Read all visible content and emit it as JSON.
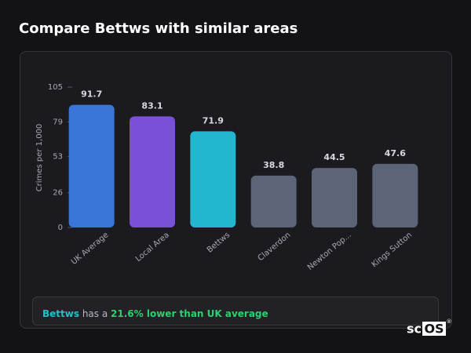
{
  "chart_data": {
    "type": "bar",
    "title": "Compare Bettws with similar areas",
    "y_label": "Crimes per 1,000",
    "categories": [
      "UK Average",
      "Local Area",
      "Bettws",
      "Claverdon",
      "Newton Pop...",
      "Kings Sutton"
    ],
    "values": [
      91.7,
      83.1,
      71.9,
      38.8,
      44.5,
      47.6
    ],
    "colors": [
      "#3a75d8",
      "#7a50d6",
      "#22b7cf",
      "#5b6577",
      "#5b6577",
      "#5b6577"
    ],
    "ylim": [
      0,
      105
    ],
    "yticks": [
      0,
      26,
      53,
      79,
      105
    ],
    "footer": {
      "area": "Bettws",
      "connector": "has a",
      "comparison": "21.6% lower than UK average"
    },
    "logo": {
      "text": "sc",
      "highlight": "OS",
      "mark": "®"
    }
  }
}
